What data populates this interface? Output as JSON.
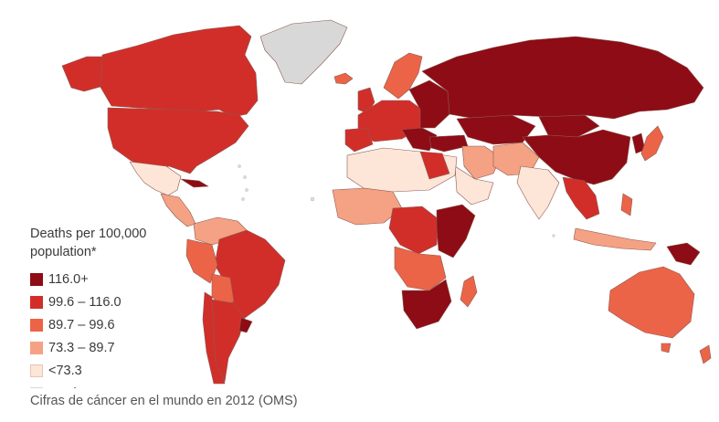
{
  "legend": {
    "title_line1": "Deaths per 100,000",
    "title_line2": "population*",
    "items": [
      {
        "label": "116.0+",
        "color": "#8e0c15"
      },
      {
        "label": "99.6 – 116.0",
        "color": "#d12e2a"
      },
      {
        "label": "89.7 – 99.6",
        "color": "#ec6447"
      },
      {
        "label": "73.3 – 89.7",
        "color": "#f5a184"
      },
      {
        "label": "<73.3",
        "color": "#fde5d8"
      },
      {
        "label": "No data",
        "color": "#d8d8d8"
      }
    ]
  },
  "caption": "Cifras de cáncer en el mundo en 2012 (OMS)",
  "colors": {
    "no_data": "#d8d8d8",
    "border": "#9a7066"
  }
}
